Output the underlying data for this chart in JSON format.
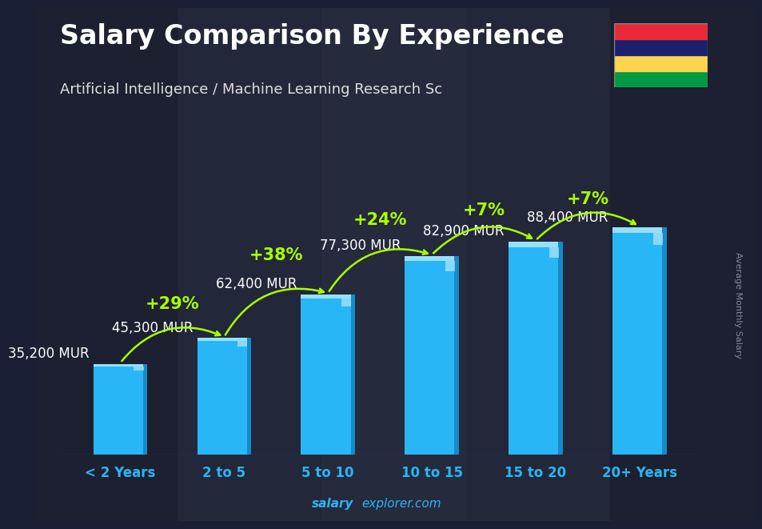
{
  "title": "Salary Comparison By Experience",
  "subtitle": "Artificial Intelligence / Machine Learning Research Sc",
  "ylabel": "Average Monthly Salary",
  "xlabel_labels": [
    "< 2 Years",
    "2 to 5",
    "5 to 10",
    "10 to 15",
    "15 to 20",
    "20+ Years"
  ],
  "values": [
    35200,
    45300,
    62400,
    77300,
    82900,
    88400
  ],
  "value_labels": [
    "35,200 MUR",
    "45,300 MUR",
    "62,400 MUR",
    "77,300 MUR",
    "82,900 MUR",
    "88,400 MUR"
  ],
  "pct_labels": [
    "+29%",
    "+38%",
    "+24%",
    "+7%",
    "+7%"
  ],
  "bar_color": "#29b6f6",
  "bar_edge_color": "#81d4fa",
  "bg_dark": "#1a2035",
  "title_color": "#ffffff",
  "subtitle_color": "#e0e0e0",
  "value_label_color": "#ffffff",
  "pct_color": "#aaff00",
  "xtick_color": "#29b6f6",
  "watermark_color": "#29b6f6",
  "watermark_bold": "salary",
  "watermark_rest": "explorer.com",
  "flag_colors": [
    "#EA2839",
    "#1A206D",
    "#FFD44F",
    "#009A44"
  ],
  "ylim_max": 108000,
  "bar_width": 0.52,
  "arc_rad": -0.4,
  "value_label_fontsize": 12,
  "pct_fontsize": 15,
  "title_fontsize": 24,
  "subtitle_fontsize": 13,
  "xtick_fontsize": 12
}
